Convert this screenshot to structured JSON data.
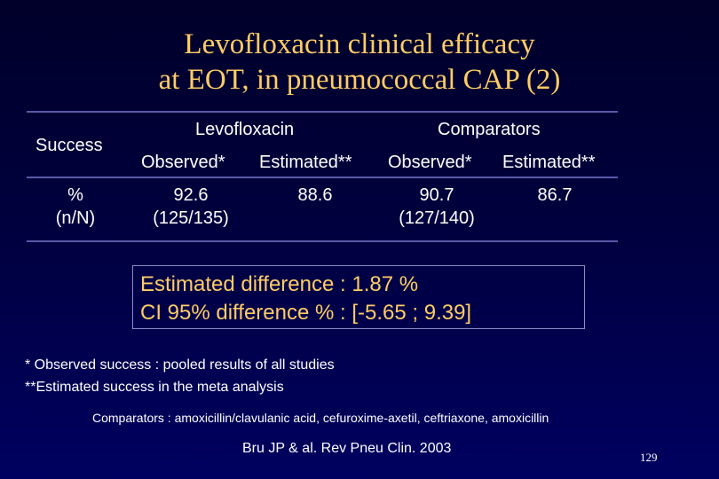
{
  "title": {
    "line1": "Levofloxacin clinical efficacy",
    "line2": "at EOT, in pneumococcal CAP (2)"
  },
  "table": {
    "row_header": "Success",
    "groups": [
      "Levofloxacin",
      "Comparators"
    ],
    "subheaders": [
      "Observed*",
      "Estimated**",
      "Observed*",
      "Estimated**"
    ],
    "row_label_line1": "%",
    "row_label_line2": "(n/N)",
    "levo_observed": "92.6",
    "levo_observed_n": "(125/135)",
    "levo_estimated": "88.6",
    "comp_observed": "90.7",
    "comp_observed_n": "(127/140)",
    "comp_estimated": "86.7"
  },
  "highlight": {
    "line1": "Estimated difference : 1.87 %",
    "line2": "CI 95% difference % : [-5.65 ; 9.39]"
  },
  "footnotes": {
    "observed": "* Observed success : pooled results of all studies",
    "estimated": "**Estimated success in the meta analysis"
  },
  "comparators_note": "Comparators : amoxicillin/clavulanic acid, cefuroxime-axetil, ceftriaxone, amoxicillin",
  "reference": "Bru JP & al. Rev Pneu Clin. 2003",
  "page_number": "129"
}
